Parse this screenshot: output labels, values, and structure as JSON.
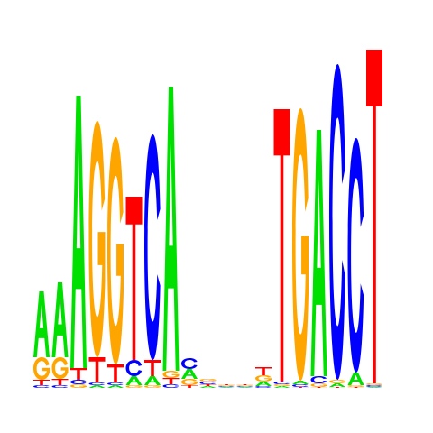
{
  "chart_data": {
    "type": "sequence-logo",
    "alphabet": [
      "A",
      "C",
      "G",
      "T"
    ],
    "colors": {
      "A": "#00e000",
      "C": "#0000ff",
      "G": "#ffa500",
      "T": "#ff0000"
    },
    "positions": [
      {
        "heights": {
          "A": 0.73,
          "C": 0.03,
          "G": 0.25,
          "T": 0.06
        }
      },
      {
        "heights": {
          "A": 0.83,
          "C": 0.03,
          "G": 0.24,
          "T": 0.07
        }
      },
      {
        "heights": {
          "A": 3.02,
          "C": 0.05,
          "G": 0.04,
          "T": 0.13
        }
      },
      {
        "heights": {
          "A": 0.03,
          "C": 0.03,
          "G": 2.62,
          "T": 0.28
        }
      },
      {
        "heights": {
          "A": 0.03,
          "C": 0.03,
          "G": 2.52,
          "T": 0.2
        }
      },
      {
        "heights": {
          "A": 0.1,
          "C": 0.18,
          "G": 0.03,
          "T": 1.81
        }
      },
      {
        "heights": {
          "A": 0.1,
          "C": 2.5,
          "G": 0.03,
          "T": 0.18
        }
      },
      {
        "heights": {
          "A": 3.15,
          "C": 0.04,
          "G": 0.08,
          "T": 0.07
        }
      },
      {
        "heights": {
          "A": 0.11,
          "C": 0.12,
          "G": 0.07,
          "T": 0.03
        }
      },
      {
        "heights": {
          "A": 0.02,
          "C": 0.03,
          "G": 0.03,
          "T": 0.02
        }
      },
      {
        "heights": {
          "A": 0.01,
          "C": 0.01,
          "G": 0.01,
          "T": 0.01
        }
      },
      {
        "heights": {
          "A": 0.01,
          "C": 0.01,
          "G": 0.01,
          "T": 0.01
        }
      },
      {
        "heights": {
          "A": 0.05,
          "C": 0.02,
          "G": 0.07,
          "T": 0.09
        }
      },
      {
        "heights": {
          "A": 0.02,
          "C": 0.03,
          "G": 0.02,
          "T": 3.02
        }
      },
      {
        "heights": {
          "A": 0.04,
          "C": 0.03,
          "G": 3.02,
          "T": 0.01
        }
      },
      {
        "heights": {
          "A": 2.73,
          "C": 0.08,
          "G": 0.04,
          "T": 0.01
        }
      },
      {
        "heights": {
          "A": 0.04,
          "C": 3.5,
          "G": 0.04,
          "T": 0.01
        }
      },
      {
        "heights": {
          "A": 0.14,
          "C": 2.6,
          "G": 0.02,
          "T": 0.01
        }
      },
      {
        "heights": {
          "A": 0.01,
          "C": 0.02,
          "G": 0.02,
          "T": 3.7
        }
      }
    ]
  }
}
